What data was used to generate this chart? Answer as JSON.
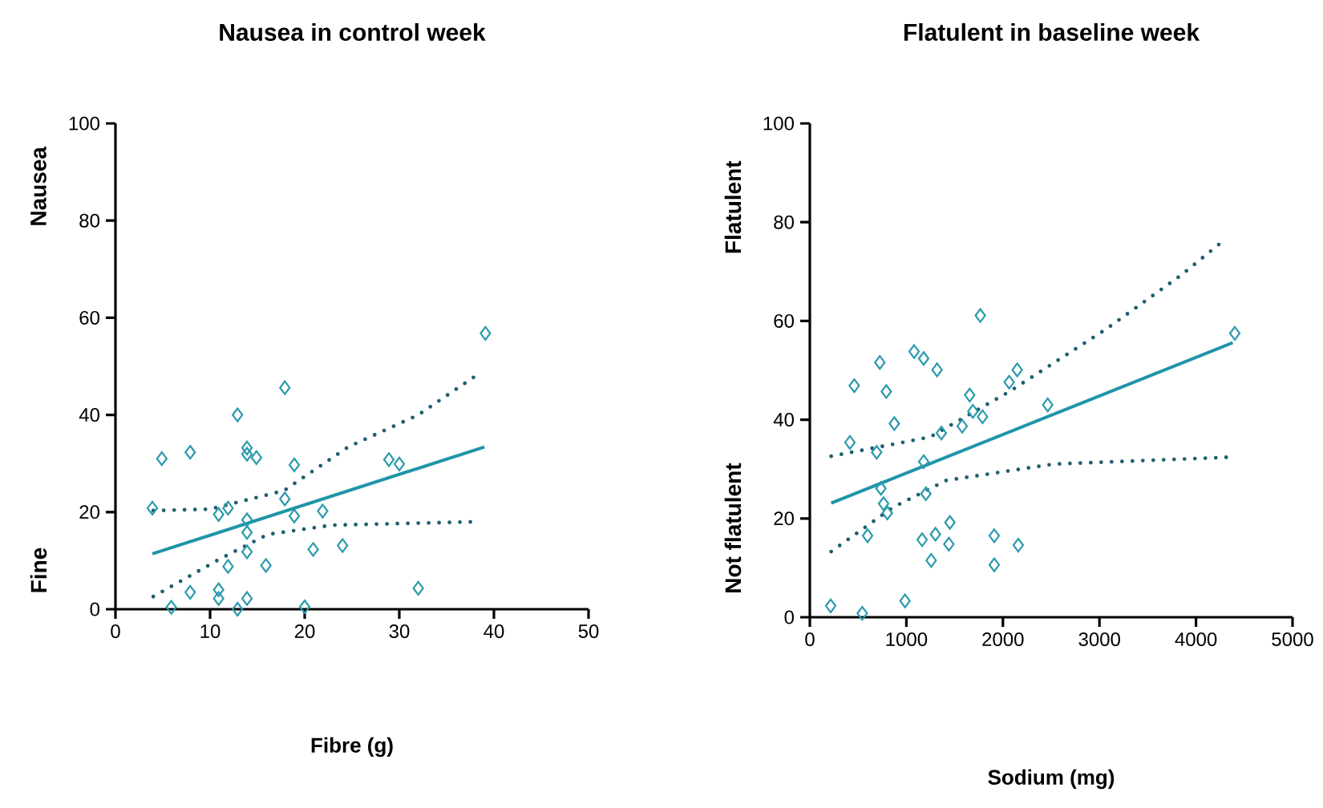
{
  "chart_data": [
    {
      "type": "scatter",
      "title": "Nausea in control week",
      "xlabel": "Fibre (g)",
      "ylabel": "Nausea",
      "annotations": [
        "Fine"
      ],
      "xlim": [
        0,
        50
      ],
      "xticks": [
        0,
        10,
        20,
        30,
        40,
        50
      ],
      "ylim": [
        0,
        100
      ],
      "yticks": [
        0,
        20,
        40,
        60,
        80,
        100
      ],
      "grid": false,
      "series": [
        {
          "marker": "diamond",
          "color": "#2a9aac",
          "x": [
            3.9,
            4.9,
            5.9,
            7.9,
            7.9,
            10.9,
            10.9,
            10.9,
            11.9,
            11.9,
            12.9,
            12.9,
            13.9,
            13.9,
            13.9,
            13.9,
            13.9,
            13.9,
            14.9,
            15.9,
            17.9,
            17.9,
            18.9,
            18.9,
            20.0,
            20.9,
            21.9,
            24.0,
            28.9,
            30.0,
            32.0,
            39.1
          ],
          "values": [
            20.8,
            31.0,
            0.4,
            32.3,
            3.5,
            19.5,
            4.0,
            2.2,
            20.8,
            8.8,
            40.0,
            0.0,
            33.2,
            31.9,
            18.4,
            15.8,
            11.8,
            2.2,
            31.2,
            9.0,
            45.6,
            22.7,
            29.7,
            19.2,
            0.5,
            12.3,
            20.2,
            13.1,
            30.8,
            29.9,
            4.3,
            56.8
          ]
        },
        {
          "type": "line",
          "color": "#1f95a8",
          "line_style": "solid",
          "x": [
            3.9,
            39.0
          ],
          "values": [
            11.4,
            33.4
          ]
        },
        {
          "type": "line",
          "color": "#1f5f6e",
          "line_style": "dotted",
          "x": [
            4.0,
            10.0,
            17.8,
            24.6,
            32.0,
            38.5
          ],
          "values": [
            20.3,
            20.6,
            24.4,
            33.4,
            40.0,
            48.6
          ]
        },
        {
          "type": "line",
          "color": "#1f5f6e",
          "line_style": "dotted",
          "x": [
            4.0,
            11.0,
            16.1,
            22.9,
            38.0
          ],
          "values": [
            2.6,
            10.3,
            15.4,
            17.3,
            18.0
          ]
        }
      ]
    },
    {
      "type": "scatter",
      "title": "Flatulent in baseline week",
      "xlabel": "Sodium (mg)",
      "ylabel": "Flatulent",
      "annotations": [
        "Not flatulent"
      ],
      "xlim": [
        0,
        5000
      ],
      "xticks": [
        0,
        1000,
        2000,
        3000,
        4000,
        5000
      ],
      "ylim": [
        0,
        100
      ],
      "yticks": [
        0,
        20,
        40,
        60,
        80,
        100
      ],
      "grid": false,
      "series": [
        {
          "marker": "diamond",
          "color": "#2a9aac",
          "x": [
            216,
            460,
            415,
            543,
            598,
            692,
            725,
            736,
            764,
            792,
            803,
            875,
            986,
            1080,
            1179,
            1179,
            1202,
            1163,
            1257,
            1301,
            1318,
            1362,
            1440,
            1451,
            1578,
            1656,
            1689,
            1766,
            1789,
            1910,
            1910,
            2065,
            2148,
            2159,
            2464,
            4402
          ],
          "values": [
            2.3,
            46.9,
            35.4,
            0.8,
            16.5,
            33.4,
            51.6,
            26.1,
            23.0,
            45.7,
            21.1,
            39.2,
            3.3,
            53.8,
            52.4,
            31.5,
            25.0,
            15.7,
            11.5,
            16.8,
            50.1,
            37.3,
            14.8,
            19.2,
            38.7,
            45.0,
            41.7,
            61.1,
            40.6,
            16.5,
            10.6,
            47.6,
            50.1,
            14.6,
            43.0,
            57.5
          ]
        },
        {
          "type": "line",
          "color": "#1f95a8",
          "line_style": "solid",
          "x": [
            221,
            4380
          ],
          "values": [
            23.1,
            55.6
          ]
        },
        {
          "type": "line",
          "color": "#1f5f6e",
          "line_style": "dotted",
          "x": [
            221,
            1246,
            2076,
            3073,
            3848,
            4300
          ],
          "values": [
            32.6,
            36.5,
            45.8,
            58.4,
            69.3,
            76.5
          ]
        },
        {
          "type": "line",
          "color": "#1f5f6e",
          "line_style": "dotted",
          "x": [
            221,
            858,
            1412,
            2519,
            4335
          ],
          "values": [
            13.3,
            22.2,
            27.7,
            31.0,
            32.4
          ]
        }
      ]
    }
  ]
}
